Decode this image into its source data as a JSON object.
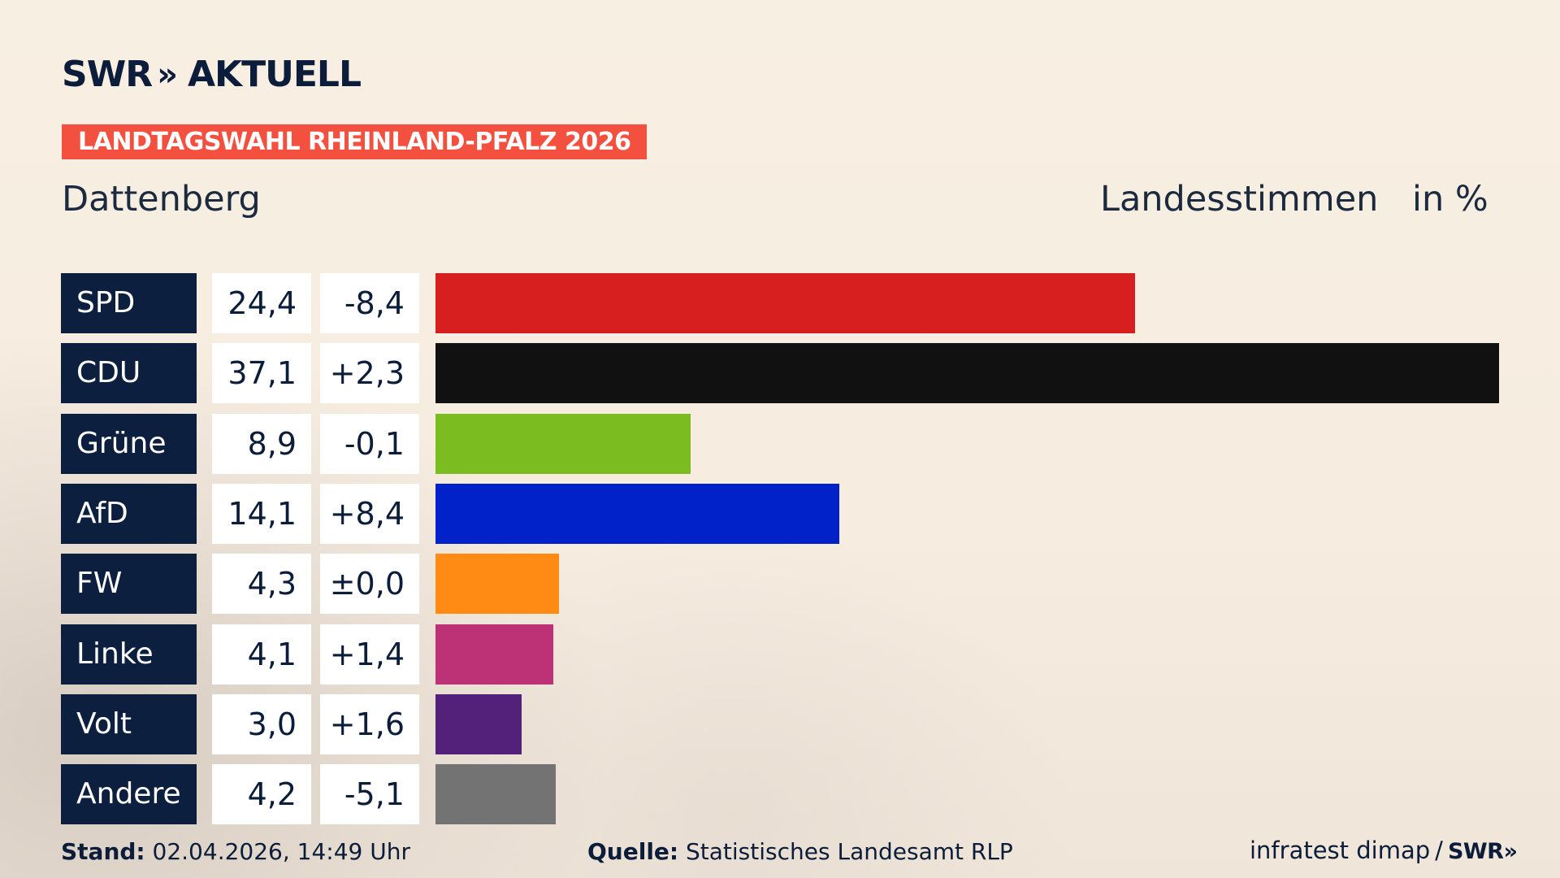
{
  "logo": {
    "brand": "SWR",
    "chevrons": "»",
    "suffix": "AKTUELL"
  },
  "banner": "LANDTAGSWAHL RHEINLAND-PFALZ 2026",
  "header": {
    "location": "Dattenberg",
    "measure": "Landesstimmen",
    "unit": "in %"
  },
  "chart_data": {
    "type": "bar",
    "orientation": "horizontal",
    "categories": [
      "SPD",
      "CDU",
      "Grüne",
      "AfD",
      "FW",
      "Linke",
      "Volt",
      "Andere"
    ],
    "values": [
      24.4,
      37.1,
      8.9,
      14.1,
      4.3,
      4.1,
      3.0,
      4.2
    ],
    "value_labels": [
      "24,4",
      "37,1",
      "8,9",
      "14,1",
      "4,3",
      "4,1",
      "3,0",
      "4,2"
    ],
    "changes": [
      -8.4,
      2.3,
      -0.1,
      8.4,
      0.0,
      1.4,
      1.6,
      -5.1
    ],
    "change_labels": [
      "-8,4",
      "+2,3",
      "-0,1",
      "+8,4",
      "±0,0",
      "+1,4",
      "+1,6",
      "-5,1"
    ],
    "colors": [
      "#d71f1f",
      "#111111",
      "#7bbd20",
      "#0022c8",
      "#ff8b15",
      "#bd3177",
      "#53207a",
      "#737373"
    ],
    "xlim": [
      0,
      37.1
    ]
  },
  "footer": {
    "stand_label": "Stand:",
    "stand_value": "02.04.2026, 14:49 Uhr",
    "source_label": "Quelle:",
    "source_value": "Statistisches Landesamt RLP",
    "credit": "infratest dimap",
    "credit_sep": "/",
    "credit_brand": "SWR»"
  }
}
